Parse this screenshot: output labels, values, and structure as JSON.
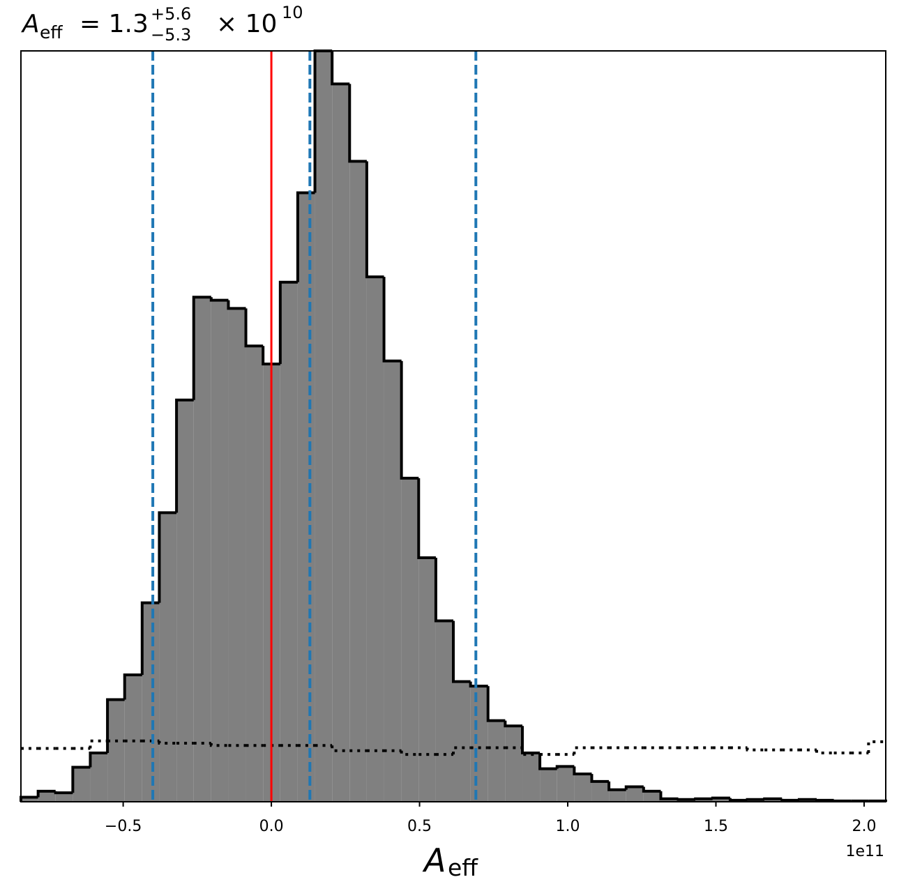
{
  "chart_data": {
    "type": "histogram",
    "title": {
      "symbol": "A",
      "symbol_sub": "eff",
      "equals": "= 1.3",
      "upper": "+5.6",
      "lower": "−5.3",
      "times": "× 10",
      "exponent": "10"
    },
    "xlabel": {
      "symbol": "A",
      "symbol_sub": "eff"
    },
    "x_offset_label": "1e11",
    "bins": [
      -0.845,
      -0.787,
      -0.728,
      -0.67,
      -0.611,
      -0.553,
      -0.495,
      -0.436,
      -0.378,
      -0.32,
      -0.262,
      -0.203,
      -0.145,
      -0.086,
      -0.028,
      0.03,
      0.089,
      0.147,
      0.205,
      0.264,
      0.322,
      0.38,
      0.439,
      0.497,
      0.555,
      0.614,
      0.672,
      0.731,
      0.789,
      0.847,
      0.906,
      0.964,
      1.022,
      1.081,
      1.139,
      1.197,
      1.256,
      1.314,
      1.373,
      1.431,
      1.489,
      1.548,
      1.606,
      1.664,
      1.723,
      1.781,
      1.84,
      1.898,
      1.956,
      2.015,
      2.073
    ],
    "values": [
      0.6,
      1.4,
      1.2,
      4.6,
      6.5,
      13.6,
      16.9,
      26.5,
      38.5,
      53.5,
      67.2,
      66.8,
      65.7,
      60.7,
      58.3,
      69.2,
      81.1,
      100,
      95.6,
      85.3,
      69.9,
      58.7,
      43.1,
      32.5,
      24.1,
      16.0,
      15.4,
      10.8,
      10.1,
      6.5,
      4.4,
      4.7,
      3.7,
      2.7,
      1.6,
      2.0,
      1.4,
      0.4,
      0.3,
      0.4,
      0.5,
      0.2,
      0.3,
      0.4,
      0.2,
      0.3,
      0.2,
      0.1,
      0.1,
      0.1
    ],
    "prior_values": [
      7.1,
      7.1,
      7.1,
      7.1,
      8.1,
      8.1,
      8.1,
      8.1,
      7.8,
      7.8,
      7.8,
      7.5,
      7.5,
      7.5,
      7.5,
      7.5,
      7.5,
      7.5,
      6.8,
      6.8,
      6.8,
      6.8,
      6.3,
      6.3,
      6.3,
      7.2,
      7.2,
      7.2,
      7.2,
      6.3,
      6.3,
      6.3,
      7.2,
      7.2,
      7.2,
      7.2,
      7.2,
      7.2,
      7.2,
      7.2,
      7.2,
      7.2,
      6.9,
      6.9,
      6.9,
      6.9,
      6.5,
      6.5,
      6.5,
      8.0
    ],
    "color": "#808080",
    "edgecolor": "#000000",
    "vlines": [
      {
        "value": 0,
        "color": "#ff0000",
        "style": "solid"
      },
      {
        "value": -0.4,
        "color": "#1f77b4",
        "style": "dashed"
      },
      {
        "value": 0.13,
        "color": "#1f77b4",
        "style": "dashed"
      },
      {
        "value": 0.69,
        "color": "#1f77b4",
        "style": "dashed"
      }
    ],
    "xlim": [
      -0.845,
      2.073
    ],
    "ylim": [
      0,
      100
    ],
    "xticks": [
      {
        "value": -0.5,
        "label": "−0.5"
      },
      {
        "value": 0,
        "label": "0.0"
      },
      {
        "value": 0.5,
        "label": "0.5"
      },
      {
        "value": 1,
        "label": "1.0"
      },
      {
        "value": 1.5,
        "label": "1.5"
      },
      {
        "value": 2,
        "label": "2.0"
      }
    ]
  }
}
